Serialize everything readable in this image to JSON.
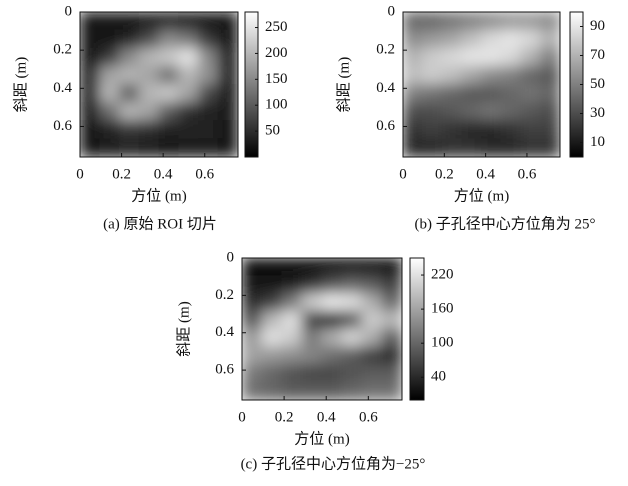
{
  "chart_data": [
    {
      "type": "heatmap",
      "caption": "(a) 原始 ROI 切片",
      "xlabel": "方位 (m)",
      "ylabel": "斜距 (m)",
      "xlim": [
        0,
        0.76
      ],
      "ylim": [
        0,
        0.76
      ],
      "y_inverted": true,
      "xticks": [
        0,
        0.2,
        0.4,
        0.6
      ],
      "yticks": [
        0,
        0.2,
        0.4,
        0.6
      ],
      "colormap": "gray",
      "clim": [
        0,
        280
      ],
      "cticks": [
        50,
        100,
        150,
        200,
        250
      ],
      "z": [
        [
          20,
          20,
          25,
          30,
          30,
          25,
          20,
          20
        ],
        [
          20,
          25,
          40,
          80,
          150,
          130,
          60,
          25
        ],
        [
          25,
          60,
          150,
          200,
          220,
          250,
          150,
          40
        ],
        [
          40,
          180,
          200,
          180,
          120,
          200,
          160,
          40
        ],
        [
          40,
          200,
          100,
          200,
          220,
          180,
          80,
          30
        ],
        [
          30,
          120,
          200,
          180,
          100,
          50,
          40,
          30
        ],
        [
          25,
          40,
          60,
          50,
          40,
          40,
          35,
          25
        ],
        [
          20,
          30,
          40,
          30,
          25,
          30,
          30,
          20
        ]
      ]
    },
    {
      "type": "heatmap",
      "caption": "(b) 子孔径中心方位角为 25°",
      "xlabel": "方位 (m)",
      "ylabel": "斜距 (m)",
      "xlim": [
        0,
        0.76
      ],
      "ylim": [
        0,
        0.76
      ],
      "y_inverted": true,
      "xticks": [
        0,
        0.2,
        0.4,
        0.6
      ],
      "yticks": [
        0,
        0.2,
        0.4,
        0.6
      ],
      "colormap": "gray",
      "clim": [
        0,
        100
      ],
      "cticks": [
        10,
        30,
        50,
        70,
        90
      ],
      "z": [
        [
          40,
          40,
          45,
          50,
          55,
          60,
          60,
          55
        ],
        [
          55,
          60,
          65,
          75,
          85,
          90,
          85,
          70
        ],
        [
          70,
          80,
          85,
          90,
          90,
          85,
          70,
          50
        ],
        [
          75,
          80,
          75,
          65,
          55,
          50,
          40,
          35
        ],
        [
          50,
          45,
          40,
          35,
          35,
          40,
          45,
          40
        ],
        [
          30,
          30,
          35,
          40,
          45,
          40,
          35,
          30
        ],
        [
          20,
          25,
          20,
          15,
          15,
          20,
          25,
          25
        ],
        [
          15,
          15,
          20,
          20,
          15,
          15,
          20,
          20
        ]
      ]
    },
    {
      "type": "heatmap",
      "caption": "(c) 子孔径中心方位角为−25°",
      "xlabel": "方位 (m)",
      "ylabel": "斜距 (m)",
      "xlim": [
        0,
        0.76
      ],
      "ylim": [
        0,
        0.76
      ],
      "y_inverted": true,
      "xticks": [
        0,
        0.2,
        0.4,
        0.6
      ],
      "yticks": [
        0,
        0.2,
        0.4,
        0.6
      ],
      "colormap": "gray",
      "clim": [
        0,
        250
      ],
      "cticks": [
        40,
        100,
        160,
        220
      ],
      "z": [
        [
          10,
          10,
          10,
          10,
          10,
          10,
          10,
          10
        ],
        [
          20,
          20,
          30,
          50,
          80,
          100,
          90,
          60
        ],
        [
          40,
          60,
          120,
          200,
          230,
          220,
          170,
          100
        ],
        [
          80,
          180,
          220,
          60,
          30,
          80,
          200,
          180
        ],
        [
          150,
          220,
          200,
          120,
          170,
          210,
          170,
          90
        ],
        [
          160,
          150,
          140,
          130,
          110,
          90,
          60,
          40
        ],
        [
          120,
          100,
          80,
          70,
          70,
          80,
          90,
          90
        ],
        [
          110,
          100,
          90,
          90,
          90,
          100,
          110,
          110
        ]
      ]
    }
  ]
}
